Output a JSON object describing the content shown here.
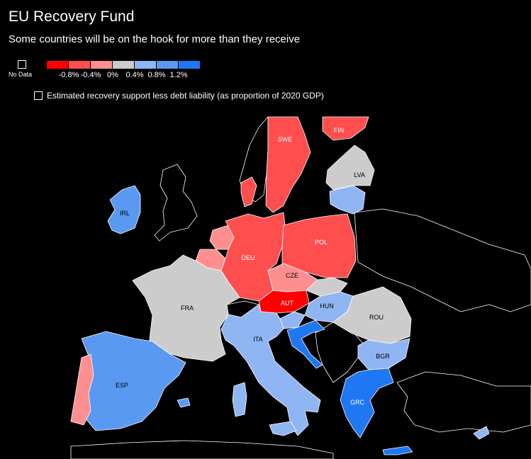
{
  "title": "EU Recovery Fund",
  "subtitle": "Some countries will be on the hook for more than they receive",
  "legend": {
    "no_data_label": "No Data",
    "colors": [
      "#ff0000",
      "#ff4e4e",
      "#ff8f8f",
      "#cccccc",
      "#8fb5f3",
      "#5a99f1",
      "#1f77f3"
    ],
    "ticks": [
      "-0.8%",
      "-0.4%",
      "0%",
      "0.4%",
      "0.8%",
      "1.2%"
    ],
    "note": "Estimated recovery support less debt liability (as proportion of 2020 GDP)"
  },
  "countries": [
    {
      "code": "SWE",
      "color": "#ff4e4e"
    },
    {
      "code": "FIN",
      "color": "#ff4e4e"
    },
    {
      "code": "LVA",
      "color": "#cccccc"
    },
    {
      "code": "IRL",
      "color": "#5a99f1"
    },
    {
      "code": "DEU",
      "color": "#ff4e4e"
    },
    {
      "code": "POL",
      "color": "#ff4e4e"
    },
    {
      "code": "CZE",
      "color": "#ff8f8f"
    },
    {
      "code": "AUT",
      "color": "#ff0000"
    },
    {
      "code": "HUN",
      "color": "#8fb5f3"
    },
    {
      "code": "ROU",
      "color": "#cccccc"
    },
    {
      "code": "FRA",
      "color": "#cccccc"
    },
    {
      "code": "ITA",
      "color": "#8fb5f3"
    },
    {
      "code": "BGR",
      "color": "#8fb5f3"
    },
    {
      "code": "ESP",
      "color": "#5a99f1"
    },
    {
      "code": "GRC",
      "color": "#1f77f3"
    }
  ]
}
